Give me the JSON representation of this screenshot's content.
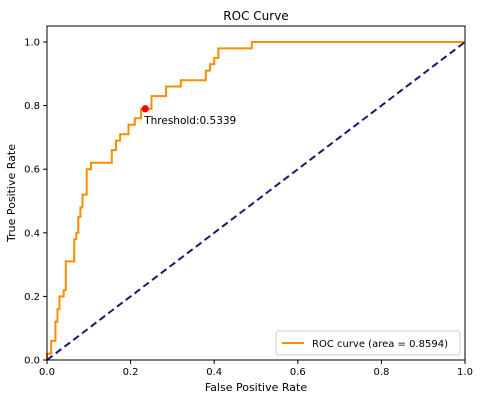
{
  "chart_data": {
    "type": "line",
    "title": "ROC Curve",
    "xlabel": "False Positive Rate",
    "ylabel": "True Positive Rate",
    "xlim": [
      0.0,
      1.0
    ],
    "ylim": [
      0.0,
      1.05
    ],
    "x_ticks": [
      "0.0",
      "0.2",
      "0.4",
      "0.6",
      "0.8",
      "1.0"
    ],
    "y_ticks": [
      "0.0",
      "0.2",
      "0.4",
      "0.6",
      "0.8",
      "1.0"
    ],
    "grid": false,
    "legend_position": "lower-right",
    "series": [
      {
        "name": "ROC curve (area = 0.8594)",
        "color": "#ff8c00",
        "style": "solid-step",
        "x": [
          0.0,
          0.0,
          0.01,
          0.01,
          0.02,
          0.02,
          0.025,
          0.025,
          0.03,
          0.03,
          0.04,
          0.04,
          0.045,
          0.045,
          0.065,
          0.065,
          0.07,
          0.07,
          0.075,
          0.075,
          0.08,
          0.08,
          0.085,
          0.085,
          0.095,
          0.095,
          0.105,
          0.105,
          0.155,
          0.155,
          0.165,
          0.165,
          0.175,
          0.175,
          0.195,
          0.195,
          0.21,
          0.21,
          0.225,
          0.225,
          0.25,
          0.25,
          0.285,
          0.285,
          0.32,
          0.32,
          0.38,
          0.38,
          0.39,
          0.39,
          0.4,
          0.4,
          0.41,
          0.41,
          0.49,
          0.49,
          1.0
        ],
        "y": [
          0.0,
          0.02,
          0.02,
          0.06,
          0.06,
          0.12,
          0.12,
          0.16,
          0.16,
          0.2,
          0.2,
          0.22,
          0.22,
          0.31,
          0.31,
          0.38,
          0.38,
          0.4,
          0.4,
          0.45,
          0.45,
          0.48,
          0.48,
          0.52,
          0.52,
          0.6,
          0.6,
          0.62,
          0.62,
          0.66,
          0.66,
          0.69,
          0.69,
          0.71,
          0.71,
          0.74,
          0.74,
          0.76,
          0.76,
          0.79,
          0.79,
          0.83,
          0.83,
          0.86,
          0.86,
          0.88,
          0.88,
          0.91,
          0.91,
          0.93,
          0.93,
          0.95,
          0.95,
          0.98,
          0.98,
          1.0,
          1.0
        ]
      },
      {
        "name": "",
        "color": "#191970",
        "style": "dashed",
        "x": [
          0.0,
          1.0
        ],
        "y": [
          0.0,
          1.0
        ]
      }
    ],
    "markers": [
      {
        "x": 0.235,
        "y": 0.79,
        "color": "#ff0000"
      }
    ],
    "annotations": [
      {
        "text": "Threshold:0.5339",
        "x": 0.235,
        "y": 0.79
      }
    ]
  }
}
